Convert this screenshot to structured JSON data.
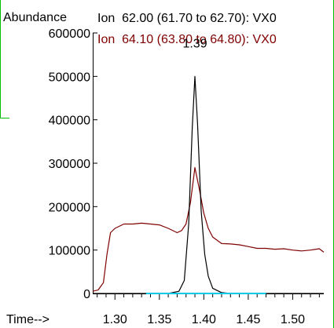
{
  "chart_data": {
    "type": "line",
    "ylabel": "Abundance",
    "xlabel": "Time-->",
    "xlim": [
      1.275,
      1.535
    ],
    "ylim": [
      0,
      600000
    ],
    "x_ticks": [
      1.3,
      1.35,
      1.4,
      1.45,
      1.5
    ],
    "x_tick_labels": [
      "1.30",
      "1.35",
      "1.40",
      "1.45",
      "1.50"
    ],
    "y_ticks": [
      0,
      100000,
      200000,
      300000,
      400000,
      500000,
      600000
    ],
    "y_tick_labels": [
      "0",
      "100000",
      "200000",
      "300000",
      "400000",
      "500000",
      "600000"
    ],
    "peak_annotation": {
      "label": "1.39",
      "x": 1.39,
      "y": 500000
    },
    "colors": {
      "ion62": "#000000",
      "ion64": "#800000",
      "baseline": "#00c8e6",
      "frame": "#00c000"
    },
    "series": [
      {
        "name": "Ion  62.00 (61.70 to 62.70): VX0",
        "color": "#000000",
        "x": [
          1.275,
          1.3,
          1.33,
          1.36,
          1.372,
          1.378,
          1.383,
          1.387,
          1.39,
          1.393,
          1.397,
          1.401,
          1.405,
          1.41,
          1.42,
          1.43,
          1.45,
          1.5,
          1.535
        ],
        "y": [
          0,
          0,
          0,
          0,
          5000,
          30000,
          160000,
          380000,
          500000,
          390000,
          190000,
          90000,
          40000,
          12000,
          2000,
          0,
          0,
          0,
          0
        ]
      },
      {
        "name": "Ion  64.10 (63.80 to 64.80): VX0",
        "color": "#800000",
        "x": [
          1.275,
          1.281,
          1.287,
          1.291,
          1.295,
          1.3,
          1.31,
          1.32,
          1.33,
          1.34,
          1.35,
          1.36,
          1.37,
          1.375,
          1.38,
          1.385,
          1.39,
          1.395,
          1.4,
          1.405,
          1.41,
          1.42,
          1.43,
          1.44,
          1.45,
          1.46,
          1.47,
          1.48,
          1.49,
          1.5,
          1.51,
          1.52,
          1.53,
          1.535
        ],
        "y": [
          5000,
          8000,
          25000,
          90000,
          140000,
          150000,
          160000,
          160000,
          162000,
          160000,
          158000,
          150000,
          140000,
          145000,
          160000,
          210000,
          290000,
          240000,
          185000,
          150000,
          130000,
          115000,
          114000,
          112000,
          108000,
          104000,
          104000,
          102000,
          103000,
          100000,
          98000,
          100000,
          103000,
          95000
        ]
      },
      {
        "name": "",
        "color": "#00c8e6",
        "x": [
          1.335,
          1.47
        ],
        "y": [
          0,
          0
        ]
      }
    ]
  }
}
